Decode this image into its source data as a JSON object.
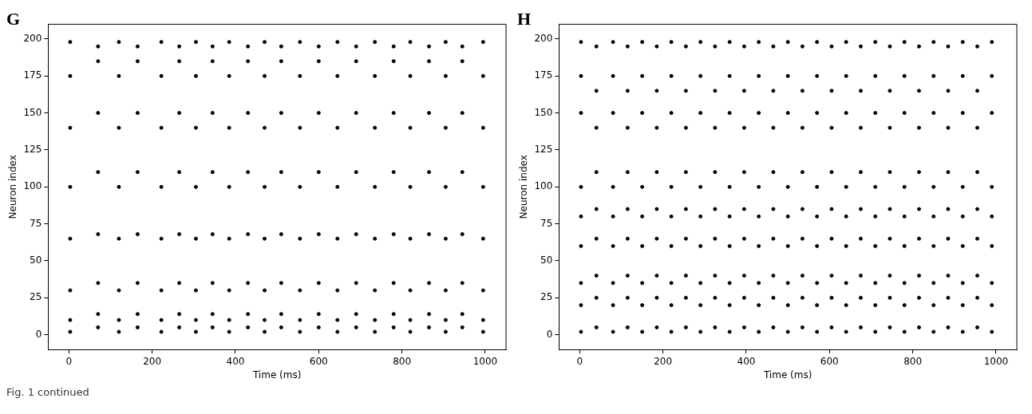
{
  "chart_data": [
    {
      "type": "scatter",
      "title": "G",
      "xlabel": "Time (ms)",
      "ylabel": "Neuron index",
      "color": "#000000",
      "marker": "circle",
      "xlim": [
        -50,
        1050
      ],
      "ylim": [
        -10,
        210
      ],
      "xticks": [
        0,
        200,
        400,
        600,
        800,
        1000
      ],
      "yticks": [
        0,
        25,
        50,
        75,
        100,
        125,
        150,
        175,
        200
      ],
      "annotations": [
        "Fig. 1 continued"
      ],
      "x": [
        3,
        3,
        3,
        3,
        3,
        3,
        3,
        3,
        70,
        70,
        70,
        70,
        70,
        70,
        70,
        70,
        120,
        120,
        120,
        120,
        120,
        120,
        120,
        120,
        165,
        165,
        165,
        165,
        165,
        165,
        165,
        165,
        222,
        222,
        222,
        222,
        222,
        222,
        222,
        222,
        265,
        265,
        265,
        265,
        265,
        265,
        265,
        265,
        305,
        305,
        305,
        305,
        305,
        305,
        305,
        305,
        345,
        345,
        345,
        345,
        345,
        345,
        345,
        345,
        385,
        385,
        385,
        385,
        385,
        385,
        385,
        385,
        430,
        430,
        430,
        430,
        430,
        430,
        430,
        430,
        470,
        470,
        470,
        470,
        470,
        470,
        470,
        470,
        510,
        510,
        510,
        510,
        510,
        510,
        510,
        510,
        555,
        555,
        555,
        555,
        555,
        555,
        555,
        555,
        600,
        600,
        600,
        600,
        600,
        600,
        600,
        600,
        645,
        645,
        645,
        645,
        645,
        645,
        645,
        645,
        690,
        690,
        690,
        690,
        690,
        690,
        690,
        690,
        735,
        735,
        735,
        735,
        735,
        735,
        735,
        735,
        780,
        780,
        780,
        780,
        780,
        780,
        780,
        780,
        820,
        820,
        820,
        820,
        820,
        820,
        820,
        820,
        865,
        865,
        865,
        865,
        865,
        865,
        865,
        865,
        905,
        905,
        905,
        905,
        905,
        905,
        905,
        905,
        945,
        945,
        945,
        945,
        945,
        945,
        945,
        945,
        995,
        995,
        995,
        995,
        995,
        995,
        995,
        995
      ],
      "values": [
        2,
        10,
        30,
        65,
        100,
        140,
        175,
        198,
        5,
        14,
        35,
        68,
        110,
        150,
        185,
        195,
        2,
        10,
        30,
        65,
        100,
        140,
        175,
        198,
        5,
        14,
        35,
        68,
        110,
        150,
        185,
        195,
        2,
        10,
        30,
        65,
        100,
        140,
        175,
        198,
        5,
        14,
        35,
        68,
        110,
        150,
        185,
        195,
        2,
        10,
        30,
        65,
        100,
        140,
        175,
        198,
        5,
        14,
        35,
        68,
        110,
        150,
        185,
        195,
        2,
        10,
        30,
        65,
        100,
        140,
        175,
        198,
        5,
        14,
        35,
        68,
        110,
        150,
        185,
        195,
        2,
        10,
        30,
        65,
        100,
        140,
        175,
        198,
        5,
        14,
        35,
        68,
        110,
        150,
        185,
        195,
        2,
        10,
        30,
        65,
        100,
        140,
        175,
        198,
        5,
        14,
        35,
        68,
        110,
        150,
        185,
        195,
        2,
        10,
        30,
        65,
        100,
        140,
        175,
        198,
        5,
        14,
        35,
        68,
        110,
        150,
        185,
        195,
        2,
        10,
        30,
        65,
        100,
        140,
        175,
        198,
        5,
        14,
        35,
        68,
        110,
        150,
        185,
        195,
        2,
        10,
        30,
        65,
        100,
        140,
        175,
        198,
        5,
        14,
        35,
        68,
        110,
        150,
        185,
        195,
        2,
        10,
        30,
        65,
        100,
        140,
        175,
        198,
        5,
        14,
        35,
        68,
        110,
        150,
        185,
        195,
        2,
        10,
        30,
        65,
        100,
        140,
        175,
        198
      ]
    },
    {
      "type": "scatter",
      "title": "H",
      "xlabel": "Time (ms)",
      "ylabel": "Neuron index",
      "color": "#000000",
      "marker": "circle",
      "xlim": [
        -50,
        1050
      ],
      "ylim": [
        -10,
        210
      ],
      "xticks": [
        0,
        200,
        400,
        600,
        800,
        1000
      ],
      "yticks": [
        0,
        25,
        50,
        75,
        100,
        125,
        150,
        175,
        200
      ],
      "x": [
        3,
        3,
        3,
        3,
        3,
        3,
        3,
        3,
        3,
        40,
        40,
        40,
        40,
        40,
        40,
        40,
        40,
        40,
        80,
        80,
        80,
        80,
        80,
        80,
        80,
        80,
        80,
        115,
        115,
        115,
        115,
        115,
        115,
        115,
        115,
        115,
        150,
        150,
        150,
        150,
        150,
        150,
        150,
        150,
        150,
        185,
        185,
        185,
        185,
        185,
        185,
        185,
        185,
        185,
        220,
        220,
        220,
        220,
        220,
        220,
        220,
        220,
        220,
        255,
        255,
        255,
        255,
        255,
        255,
        255,
        255,
        255,
        290,
        290,
        290,
        290,
        290,
        290,
        290,
        290,
        290,
        325,
        325,
        325,
        325,
        325,
        325,
        325,
        325,
        325,
        360,
        360,
        360,
        360,
        360,
        360,
        360,
        360,
        360,
        395,
        395,
        395,
        395,
        395,
        395,
        395,
        395,
        395,
        430,
        430,
        430,
        430,
        430,
        430,
        430,
        430,
        430,
        465,
        465,
        465,
        465,
        465,
        465,
        465,
        465,
        465,
        500,
        500,
        500,
        500,
        500,
        500,
        500,
        500,
        500,
        535,
        535,
        535,
        535,
        535,
        535,
        535,
        535,
        535,
        570,
        570,
        570,
        570,
        570,
        570,
        570,
        570,
        570,
        605,
        605,
        605,
        605,
        605,
        605,
        605,
        605,
        605,
        640,
        640,
        640,
        640,
        640,
        640,
        640,
        640,
        640,
        675,
        675,
        675,
        675,
        675,
        675,
        675,
        675,
        675,
        710,
        710,
        710,
        710,
        710,
        710,
        710,
        710,
        710,
        745,
        745,
        745,
        745,
        745,
        745,
        745,
        745,
        745,
        780,
        780,
        780,
        780,
        780,
        780,
        780,
        780,
        780,
        815,
        815,
        815,
        815,
        815,
        815,
        815,
        815,
        815,
        850,
        850,
        850,
        850,
        850,
        850,
        850,
        850,
        850,
        885,
        885,
        885,
        885,
        885,
        885,
        885,
        885,
        885,
        920,
        920,
        920,
        920,
        920,
        920,
        920,
        920,
        920,
        955,
        955,
        955,
        955,
        955,
        955,
        955,
        955,
        955,
        990,
        990,
        990,
        990,
        990,
        990,
        990,
        990,
        990
      ],
      "values": [
        2,
        20,
        35,
        60,
        80,
        100,
        150,
        175,
        198,
        5,
        25,
        40,
        65,
        85,
        110,
        140,
        165,
        195,
        2,
        20,
        35,
        60,
        80,
        100,
        150,
        175,
        198,
        5,
        25,
        40,
        65,
        85,
        110,
        140,
        165,
        195,
        2,
        20,
        35,
        60,
        80,
        100,
        150,
        175,
        198,
        5,
        25,
        40,
        65,
        85,
        110,
        140,
        165,
        195,
        2,
        20,
        35,
        60,
        80,
        100,
        150,
        175,
        198,
        5,
        25,
        40,
        65,
        85,
        110,
        140,
        165,
        195,
        2,
        20,
        35,
        60,
        80,
        100,
        150,
        175,
        198,
        5,
        25,
        40,
        65,
        85,
        110,
        140,
        165,
        195,
        2,
        20,
        35,
        60,
        80,
        100,
        150,
        175,
        198,
        5,
        25,
        40,
        65,
        85,
        110,
        140,
        165,
        195,
        2,
        20,
        35,
        60,
        80,
        100,
        150,
        175,
        198,
        5,
        25,
        40,
        65,
        85,
        110,
        140,
        165,
        195,
        2,
        20,
        35,
        60,
        80,
        100,
        150,
        175,
        198,
        5,
        25,
        40,
        65,
        85,
        110,
        140,
        165,
        195,
        2,
        20,
        35,
        60,
        80,
        100,
        150,
        175,
        198,
        5,
        25,
        40,
        65,
        85,
        110,
        140,
        165,
        195,
        2,
        20,
        35,
        60,
        80,
        100,
        150,
        175,
        198,
        5,
        25,
        40,
        65,
        85,
        110,
        140,
        165,
        195,
        2,
        20,
        35,
        60,
        80,
        100,
        150,
        175,
        198,
        5,
        25,
        40,
        65,
        85,
        110,
        140,
        165,
        195,
        2,
        20,
        35,
        60,
        80,
        100,
        150,
        175,
        198,
        5,
        25,
        40,
        65,
        85,
        110,
        140,
        165,
        195,
        2,
        20,
        35,
        60,
        80,
        100,
        150,
        175,
        198,
        5,
        25,
        40,
        65,
        85,
        110,
        140,
        165,
        195,
        2,
        20,
        35,
        60,
        80,
        100,
        150,
        175,
        198,
        5,
        25,
        40,
        65,
        85,
        110,
        140,
        165,
        195,
        2,
        20,
        35,
        60,
        80,
        100,
        150,
        175,
        198
      ]
    }
  ]
}
